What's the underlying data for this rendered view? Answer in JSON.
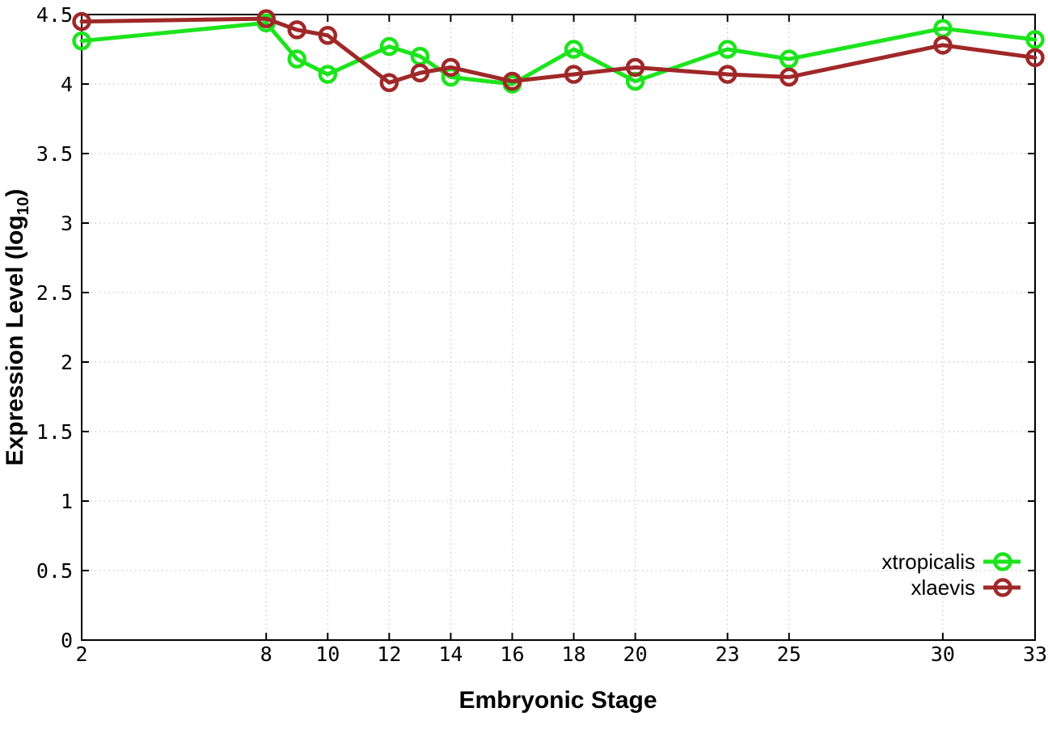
{
  "figure": {
    "background": "#ffffff",
    "xlabel": "Embryonic Stage",
    "ylabel_prefix": "Expression Level (log",
    "ylabel_sub": "10",
    "ylabel_suffix": ")"
  },
  "chart_data": {
    "type": "line",
    "title": "",
    "xlabel": "Embryonic Stage",
    "ylabel": "Expression Level (log10)",
    "x": [
      2,
      8,
      9,
      10,
      12,
      13,
      14,
      16,
      18,
      20,
      23,
      25,
      30,
      33
    ],
    "series": [
      {
        "name": "xtropicalis",
        "color": "#1ce41c",
        "values": [
          4.31,
          4.44,
          4.18,
          4.07,
          4.27,
          4.2,
          4.05,
          4.0,
          4.25,
          4.02,
          4.25,
          4.18,
          4.4,
          4.32
        ]
      },
      {
        "name": "xlaevis",
        "color": "#a02828",
        "values": [
          4.45,
          4.47,
          4.39,
          4.35,
          4.01,
          4.08,
          4.12,
          4.02,
          4.07,
          4.12,
          4.07,
          4.05,
          4.28,
          4.19
        ]
      }
    ],
    "xticks": [
      "2",
      "8",
      "10",
      "12",
      "14",
      "16",
      "18",
      "20",
      "23",
      "25",
      "30",
      "33"
    ],
    "yticks": [
      "0",
      "0.5",
      "1",
      "1.5",
      "2",
      "2.5",
      "3",
      "3.5",
      "4",
      "4.5"
    ],
    "xlim": [
      2,
      33
    ],
    "ylim": [
      0,
      4.5
    ],
    "grid": true,
    "legend_position": "inside-right-lower",
    "axis_color": "#000000",
    "grid_color": "#bdbdbd",
    "tick_label_color": "#000000"
  }
}
